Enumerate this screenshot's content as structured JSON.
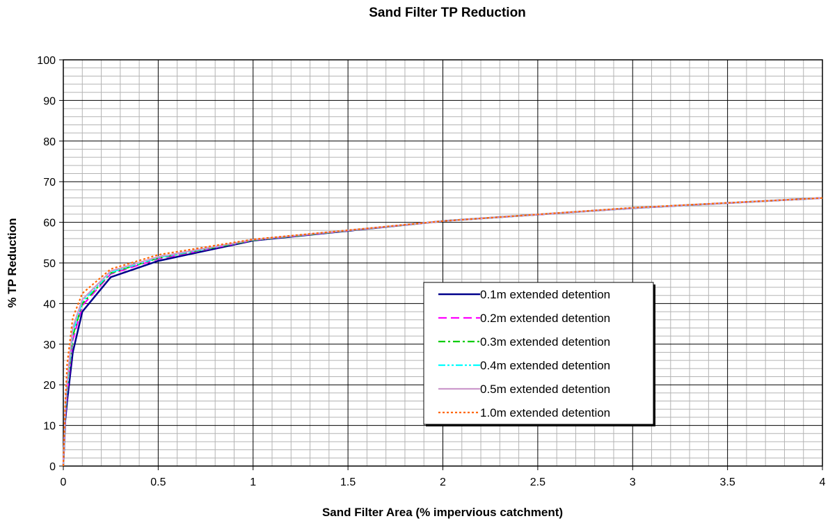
{
  "chart_data": {
    "type": "line",
    "title": "Sand Filter TP Reduction",
    "xlabel": "Sand Filter Area (% impervious catchment)",
    "ylabel": "% TP Reduction",
    "xlim": [
      0,
      4
    ],
    "ylim": [
      0,
      100
    ],
    "x_ticks": [
      "0",
      "0.5",
      "1",
      "1.5",
      "2",
      "2.5",
      "3",
      "3.5",
      "4"
    ],
    "y_ticks": [
      "0",
      "10",
      "20",
      "30",
      "40",
      "50",
      "60",
      "70",
      "80",
      "90",
      "100"
    ],
    "grid": true,
    "legend_position": "center-right",
    "x": [
      0,
      0.01,
      0.02,
      0.05,
      0.1,
      0.25,
      0.5,
      1,
      2,
      3,
      4
    ],
    "series": [
      {
        "name": "0.1m extended detention",
        "color": "#00008B",
        "dash": "solid",
        "values": [
          0,
          11,
          16,
          28,
          38,
          46.5,
          50.5,
          55.5,
          60.3,
          63.5,
          66
        ]
      },
      {
        "name": "0.2m extended detention",
        "color": "#FF00FF",
        "dash": "dashed",
        "values": [
          0,
          12,
          18,
          31,
          39.5,
          47.3,
          51,
          55.6,
          60.3,
          63.5,
          66
        ]
      },
      {
        "name": "0.3m extended detention",
        "color": "#00CC00",
        "dash": "dashdot",
        "values": [
          0,
          12.5,
          19,
          32,
          40,
          47.5,
          51.2,
          55.6,
          60.3,
          63.5,
          66
        ]
      },
      {
        "name": "0.4m extended detention",
        "color": "#00FFFF",
        "dash": "dashdotdot",
        "values": [
          0,
          13,
          20,
          33,
          40.5,
          47.7,
          51.3,
          55.7,
          60.3,
          63.5,
          66
        ]
      },
      {
        "name": "0.5m extended detention",
        "color": "#CC99CC",
        "dash": "solid",
        "values": [
          0,
          13.5,
          21,
          34,
          41,
          48,
          51.5,
          55.7,
          60.3,
          63.5,
          66
        ]
      },
      {
        "name": "1.0m extended detention",
        "color": "#FF6600",
        "dash": "dotted",
        "values": [
          0,
          15,
          25,
          36.5,
          42.5,
          48.5,
          52,
          55.8,
          60.3,
          63.6,
          66
        ]
      }
    ]
  }
}
